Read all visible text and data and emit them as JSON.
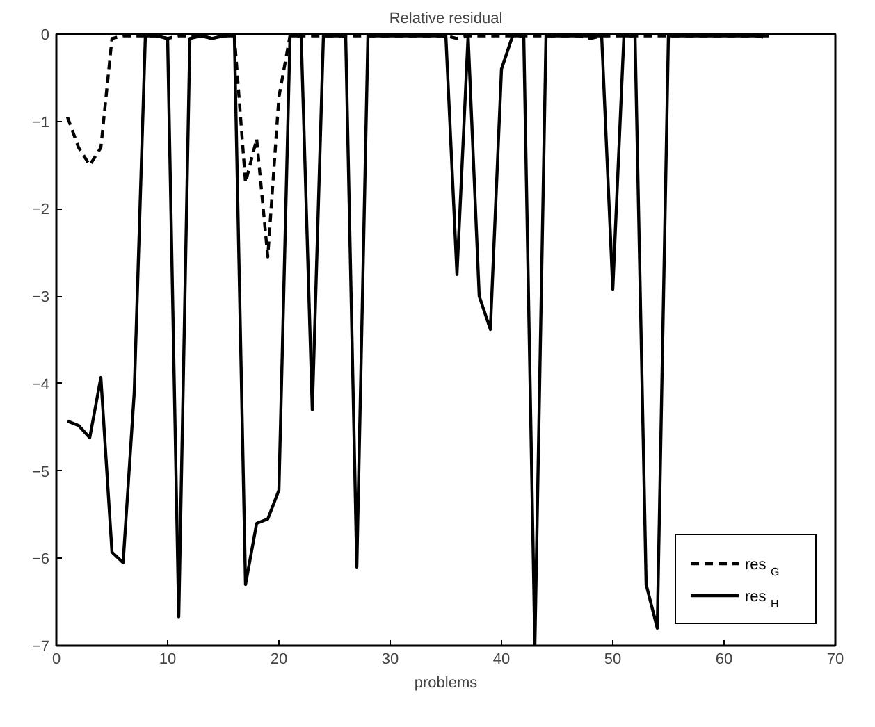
{
  "chart_data": {
    "type": "line",
    "title": "Relative residual",
    "xlabel": "problems",
    "x": [
      1,
      2,
      3,
      4,
      5,
      6,
      7,
      8,
      9,
      10,
      11,
      12,
      13,
      14,
      15,
      16,
      17,
      18,
      19,
      20,
      21,
      22,
      23,
      24,
      25,
      26,
      27,
      28,
      29,
      30,
      31,
      32,
      33,
      34,
      35,
      36,
      37,
      38,
      39,
      40,
      41,
      42,
      43,
      44,
      45,
      46,
      47,
      48,
      49,
      50,
      51,
      52,
      53,
      54,
      55,
      56,
      57,
      58,
      59,
      60,
      61,
      62,
      63,
      64
    ],
    "series": [
      {
        "name": "res$_{G}$",
        "color": "#000000",
        "line_style": "dashed",
        "values": [
          -0.95,
          -1.3,
          -1.5,
          -1.3,
          -0.05,
          -0.02,
          -0.02,
          -0.02,
          -0.02,
          -0.05,
          -0.02,
          -0.02,
          -0.02,
          -0.05,
          -0.02,
          -0.02,
          -1.7,
          -1.2,
          -2.55,
          -0.72,
          -0.02,
          -0.02,
          -0.02,
          -0.02,
          -0.02,
          -0.02,
          -0.02,
          -0.02,
          -0.02,
          -0.02,
          -0.02,
          -0.02,
          -0.02,
          -0.02,
          -0.02,
          -0.05,
          -0.02,
          -0.02,
          -0.02,
          -0.02,
          -0.02,
          -0.02,
          -0.02,
          -0.02,
          -0.02,
          -0.02,
          -0.02,
          -0.05,
          -0.02,
          -0.02,
          -0.02,
          -0.02,
          -0.02,
          -0.02,
          -0.02,
          -0.02,
          -0.02,
          -0.02,
          -0.02,
          -0.02,
          -0.02,
          -0.02,
          -0.02,
          -0.05
        ]
      },
      {
        "name": "res$_{H}$",
        "color": "#000000",
        "line_style": "solid",
        "values": [
          -4.43,
          -4.48,
          -4.62,
          -3.93,
          -5.93,
          -6.05,
          -4.1,
          -0.02,
          -0.02,
          -0.05,
          -6.67,
          -0.05,
          -0.02,
          -0.05,
          -0.02,
          -0.02,
          -6.3,
          -5.6,
          -5.55,
          -5.22,
          -0.02,
          -0.02,
          -4.3,
          -0.02,
          -0.02,
          -0.02,
          -6.1,
          -0.02,
          -0.02,
          -0.02,
          -0.02,
          -0.02,
          -0.02,
          -0.02,
          -0.02,
          -2.75,
          -0.02,
          -3.0,
          -3.38,
          -0.4,
          -0.02,
          -0.02,
          -7.0,
          -0.02,
          -0.02,
          -0.02,
          -0.02,
          -0.02,
          -0.02,
          -2.92,
          -0.02,
          -0.02,
          -6.3,
          -6.8,
          -0.02,
          -0.02,
          -0.02,
          -0.02,
          -0.02,
          -0.02,
          -0.02,
          -0.02,
          -0.02,
          -0.02
        ]
      }
    ],
    "xlim": [
      0,
      70
    ],
    "ylim": [
      -7,
      0
    ],
    "xticks": [
      0,
      10,
      20,
      30,
      40,
      50,
      60,
      70
    ],
    "yticks": [
      -7,
      -6,
      -5,
      -4,
      -3,
      -2,
      -1,
      0
    ],
    "grid": false,
    "legend": "bottom right",
    "marker": "none"
  }
}
